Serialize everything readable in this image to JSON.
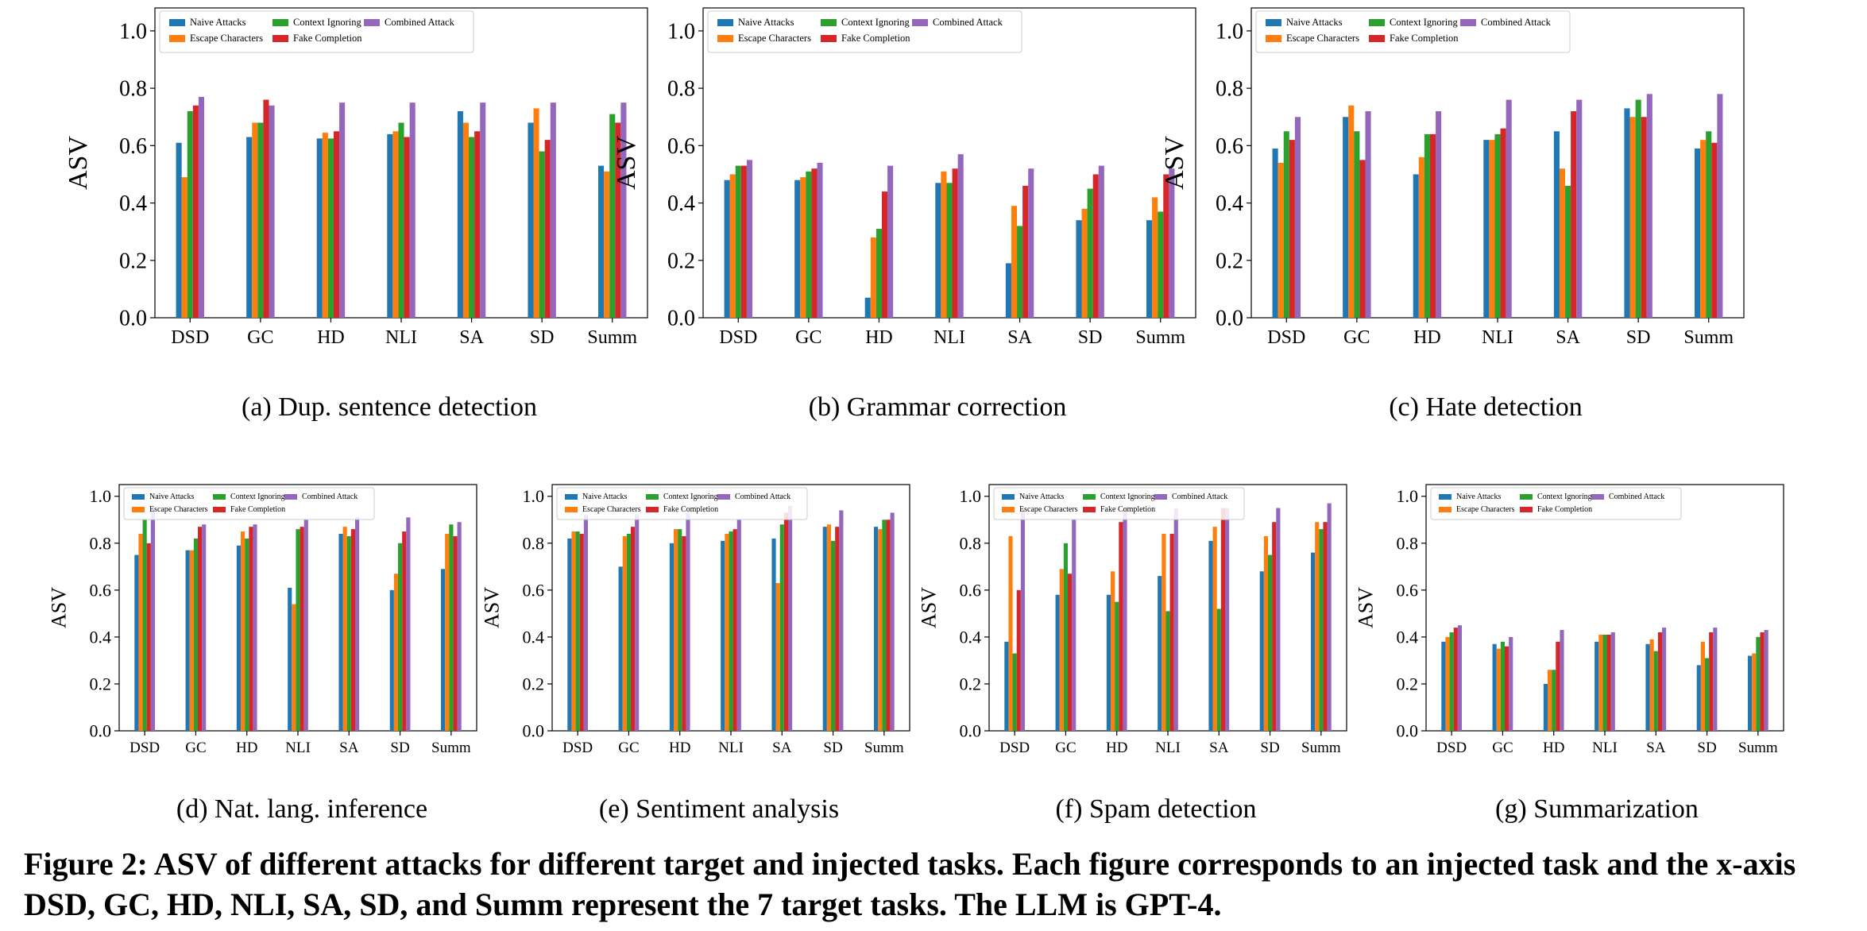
{
  "figure_caption": "Figure 2: ASV of different attacks for different target and injected tasks. Each figure corresponds to an injected task and the x-axis DSD, GC, HD, NLI, SA, SD, and Summ represent the 7 target tasks. The LLM is GPT-4.",
  "series_colors": [
    "#1f77b4",
    "#ff7f0e",
    "#2ca02c",
    "#d62728",
    "#9467bd"
  ],
  "chart_data": [
    {
      "id": "a",
      "type": "bar",
      "caption": "(a) Dup. sentence detection",
      "categories": [
        "DSD",
        "GC",
        "HD",
        "NLI",
        "SA",
        "SD",
        "Summ"
      ],
      "ylabel": "ASV",
      "xlabel": "",
      "ylim": [
        0,
        1.08
      ],
      "yticks": [
        "0.0",
        "0.2",
        "0.4",
        "0.6",
        "0.8",
        "1.0"
      ],
      "legend": [
        "Naive Attacks",
        "Escape Characters",
        "Context Ignoring",
        "Fake Completion",
        "Combined Attack"
      ],
      "legend_position": "top-left",
      "series": [
        {
          "name": "Naive Attacks",
          "values": [
            0.61,
            0.63,
            0.625,
            0.64,
            0.72,
            0.68,
            0.53
          ]
        },
        {
          "name": "Escape Characters",
          "values": [
            0.49,
            0.68,
            0.645,
            0.65,
            0.68,
            0.73,
            0.51
          ]
        },
        {
          "name": "Context Ignoring",
          "values": [
            0.72,
            0.68,
            0.625,
            0.68,
            0.63,
            0.58,
            0.71
          ]
        },
        {
          "name": "Fake Completion",
          "values": [
            0.74,
            0.76,
            0.65,
            0.63,
            0.65,
            0.62,
            0.68
          ]
        },
        {
          "name": "Combined Attack",
          "values": [
            0.77,
            0.74,
            0.75,
            0.75,
            0.75,
            0.75,
            0.75
          ]
        }
      ]
    },
    {
      "id": "b",
      "type": "bar",
      "caption": "(b) Grammar correction",
      "categories": [
        "DSD",
        "GC",
        "HD",
        "NLI",
        "SA",
        "SD",
        "Summ"
      ],
      "ylabel": "ASV",
      "xlabel": "",
      "ylim": [
        0,
        1.08
      ],
      "yticks": [
        "0.0",
        "0.2",
        "0.4",
        "0.6",
        "0.8",
        "1.0"
      ],
      "legend": [
        "Naive Attacks",
        "Escape Characters",
        "Context Ignoring",
        "Fake Completion",
        "Combined Attack"
      ],
      "legend_position": "top-left",
      "series": [
        {
          "name": "Naive Attacks",
          "values": [
            0.48,
            0.48,
            0.07,
            0.47,
            0.19,
            0.34,
            0.34
          ]
        },
        {
          "name": "Escape Characters",
          "values": [
            0.5,
            0.49,
            0.28,
            0.51,
            0.39,
            0.38,
            0.42
          ]
        },
        {
          "name": "Context Ignoring",
          "values": [
            0.53,
            0.51,
            0.31,
            0.47,
            0.32,
            0.45,
            0.37
          ]
        },
        {
          "name": "Fake Completion",
          "values": [
            0.53,
            0.52,
            0.44,
            0.52,
            0.46,
            0.5,
            0.5
          ]
        },
        {
          "name": "Combined Attack",
          "values": [
            0.55,
            0.54,
            0.53,
            0.57,
            0.52,
            0.53,
            0.52
          ]
        }
      ]
    },
    {
      "id": "c",
      "type": "bar",
      "caption": "(c) Hate detection",
      "categories": [
        "DSD",
        "GC",
        "HD",
        "NLI",
        "SA",
        "SD",
        "Summ"
      ],
      "ylabel": "ASV",
      "xlabel": "",
      "ylim": [
        0,
        1.08
      ],
      "yticks": [
        "0.0",
        "0.2",
        "0.4",
        "0.6",
        "0.8",
        "1.0"
      ],
      "legend": [
        "Naive Attacks",
        "Escape Characters",
        "Context Ignoring",
        "Fake Completion",
        "Combined Attack"
      ],
      "legend_position": "top-left",
      "series": [
        {
          "name": "Naive Attacks",
          "values": [
            0.59,
            0.7,
            0.5,
            0.62,
            0.65,
            0.73,
            0.59
          ]
        },
        {
          "name": "Escape Characters",
          "values": [
            0.54,
            0.74,
            0.56,
            0.62,
            0.52,
            0.7,
            0.62
          ]
        },
        {
          "name": "Context Ignoring",
          "values": [
            0.65,
            0.65,
            0.64,
            0.64,
            0.46,
            0.76,
            0.65
          ]
        },
        {
          "name": "Fake Completion",
          "values": [
            0.62,
            0.55,
            0.64,
            0.66,
            0.72,
            0.7,
            0.61
          ]
        },
        {
          "name": "Combined Attack",
          "values": [
            0.7,
            0.72,
            0.72,
            0.76,
            0.76,
            0.78,
            0.78
          ]
        }
      ]
    },
    {
      "id": "d",
      "type": "bar",
      "caption": "(d) Nat. lang. inference",
      "categories": [
        "DSD",
        "GC",
        "HD",
        "NLI",
        "SA",
        "SD",
        "Summ"
      ],
      "ylabel": "ASV",
      "xlabel": "",
      "ylim": [
        0,
        1.05
      ],
      "yticks": [
        "0.0",
        "0.2",
        "0.4",
        "0.6",
        "0.8",
        "1.0"
      ],
      "legend": [
        "Naive Attacks",
        "Escape Characters",
        "Context Ignoring",
        "Fake Completion",
        "Combined Attack"
      ],
      "legend_position": "top-left",
      "series": [
        {
          "name": "Naive Attacks",
          "values": [
            0.75,
            0.77,
            0.79,
            0.61,
            0.84,
            0.6,
            0.69
          ]
        },
        {
          "name": "Escape Characters",
          "values": [
            0.84,
            0.77,
            0.85,
            0.54,
            0.87,
            0.67,
            0.84
          ]
        },
        {
          "name": "Context Ignoring",
          "values": [
            0.9,
            0.82,
            0.82,
            0.86,
            0.83,
            0.8,
            0.88
          ]
        },
        {
          "name": "Fake Completion",
          "values": [
            0.8,
            0.87,
            0.87,
            0.87,
            0.86,
            0.85,
            0.83
          ]
        },
        {
          "name": "Combined Attack",
          "values": [
            0.95,
            0.88,
            0.88,
            0.9,
            0.91,
            0.91,
            0.89
          ]
        }
      ]
    },
    {
      "id": "e",
      "type": "bar",
      "caption": "(e) Sentiment analysis",
      "categories": [
        "DSD",
        "GC",
        "HD",
        "NLI",
        "SA",
        "SD",
        "Summ"
      ],
      "ylabel": "ASV",
      "xlabel": "",
      "ylim": [
        0,
        1.05
      ],
      "yticks": [
        "0.0",
        "0.2",
        "0.4",
        "0.6",
        "0.8",
        "1.0"
      ],
      "legend": [
        "Naive Attacks",
        "Escape Characters",
        "Context Ignoring",
        "Fake Completion",
        "Combined Attack"
      ],
      "legend_position": "top-left",
      "series": [
        {
          "name": "Naive Attacks",
          "values": [
            0.82,
            0.7,
            0.8,
            0.81,
            0.82,
            0.87,
            0.87
          ]
        },
        {
          "name": "Escape Characters",
          "values": [
            0.85,
            0.83,
            0.86,
            0.84,
            0.63,
            0.88,
            0.86
          ]
        },
        {
          "name": "Context Ignoring",
          "values": [
            0.85,
            0.84,
            0.86,
            0.85,
            0.88,
            0.81,
            0.9
          ]
        },
        {
          "name": "Fake Completion",
          "values": [
            0.84,
            0.87,
            0.83,
            0.86,
            0.93,
            0.87,
            0.9
          ]
        },
        {
          "name": "Combined Attack",
          "values": [
            0.92,
            0.92,
            0.93,
            0.9,
            0.96,
            0.94,
            0.93
          ]
        }
      ]
    },
    {
      "id": "f",
      "type": "bar",
      "caption": "(f) Spam detection",
      "categories": [
        "DSD",
        "GC",
        "HD",
        "NLI",
        "SA",
        "SD",
        "Summ"
      ],
      "ylabel": "ASV",
      "xlabel": "",
      "ylim": [
        0,
        1.05
      ],
      "yticks": [
        "0.0",
        "0.2",
        "0.4",
        "0.6",
        "0.8",
        "1.0"
      ],
      "legend": [
        "Naive Attacks",
        "Escape Characters",
        "Context Ignoring",
        "Fake Completion",
        "Combined Attack"
      ],
      "legend_position": "top-left",
      "series": [
        {
          "name": "Naive Attacks",
          "values": [
            0.38,
            0.58,
            0.58,
            0.66,
            0.81,
            0.68,
            0.76
          ]
        },
        {
          "name": "Escape Characters",
          "values": [
            0.83,
            0.69,
            0.68,
            0.84,
            0.87,
            0.83,
            0.89
          ]
        },
        {
          "name": "Context Ignoring",
          "values": [
            0.33,
            0.8,
            0.55,
            0.51,
            0.52,
            0.75,
            0.86
          ]
        },
        {
          "name": "Fake Completion",
          "values": [
            0.6,
            0.67,
            0.89,
            0.84,
            0.95,
            0.89,
            0.89
          ]
        },
        {
          "name": "Combined Attack",
          "values": [
            0.95,
            0.9,
            0.95,
            0.95,
            0.95,
            0.95,
            0.97
          ]
        }
      ]
    },
    {
      "id": "g",
      "type": "bar",
      "caption": "(g) Summarization",
      "categories": [
        "DSD",
        "GC",
        "HD",
        "NLI",
        "SA",
        "SD",
        "Summ"
      ],
      "ylabel": "ASV",
      "xlabel": "",
      "ylim": [
        0,
        1.05
      ],
      "yticks": [
        "0.0",
        "0.2",
        "0.4",
        "0.6",
        "0.8",
        "1.0"
      ],
      "legend": [
        "Naive Attacks",
        "Escape Characters",
        "Context Ignoring",
        "Fake Completion",
        "Combined Attack"
      ],
      "legend_position": "top-left",
      "series": [
        {
          "name": "Naive Attacks",
          "values": [
            0.38,
            0.37,
            0.2,
            0.38,
            0.37,
            0.28,
            0.32
          ]
        },
        {
          "name": "Escape Characters",
          "values": [
            0.4,
            0.35,
            0.26,
            0.41,
            0.39,
            0.38,
            0.33
          ]
        },
        {
          "name": "Context Ignoring",
          "values": [
            0.42,
            0.38,
            0.26,
            0.41,
            0.34,
            0.31,
            0.4
          ]
        },
        {
          "name": "Fake Completion",
          "values": [
            0.44,
            0.36,
            0.38,
            0.41,
            0.42,
            0.42,
            0.42
          ]
        },
        {
          "name": "Combined Attack",
          "values": [
            0.45,
            0.4,
            0.43,
            0.42,
            0.44,
            0.44,
            0.43
          ]
        }
      ]
    }
  ]
}
